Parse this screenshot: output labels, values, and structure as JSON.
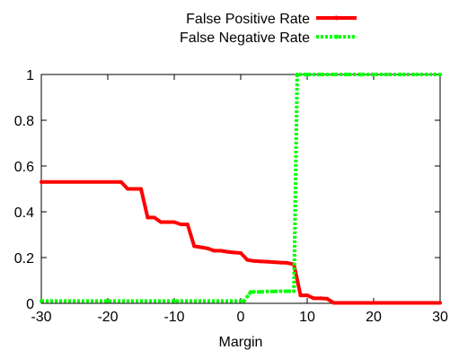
{
  "chart_data": {
    "type": "line",
    "xlabel": "Margin",
    "ylabel": "",
    "xlim": [
      -30,
      30
    ],
    "ylim": [
      0,
      1
    ],
    "xticks": [
      -30,
      -20,
      -10,
      0,
      10,
      20,
      30
    ],
    "yticks": [
      0,
      0.2,
      0.4,
      0.6,
      0.8,
      1
    ],
    "xtick_labels": [
      "-30",
      "-20",
      "-10",
      "0",
      "10",
      "20",
      "30"
    ],
    "ytick_labels": [
      "0",
      "0.2",
      "0.4",
      "0.6",
      "0.8",
      "1"
    ],
    "grid": false,
    "legend_position": "top-center",
    "series": [
      {
        "name": "False Positive Rate",
        "color": "#ff0000",
        "style": "solid",
        "marker": "dot",
        "x": [
          -30,
          -18,
          -17,
          -15,
          -14,
          -13,
          -12,
          -10,
          -9,
          -8,
          -7,
          -6,
          -5,
          -4,
          -3,
          -2,
          -1,
          0,
          1,
          2,
          3,
          4,
          5,
          6,
          7,
          8,
          9,
          10,
          11,
          12,
          13,
          14,
          16,
          18,
          20,
          25,
          30
        ],
        "y": [
          0.53,
          0.53,
          0.5,
          0.5,
          0.375,
          0.375,
          0.355,
          0.355,
          0.345,
          0.345,
          0.25,
          0.245,
          0.24,
          0.23,
          0.23,
          0.225,
          0.222,
          0.22,
          0.19,
          0.185,
          0.183,
          0.182,
          0.18,
          0.178,
          0.177,
          0.17,
          0.035,
          0.035,
          0.022,
          0.022,
          0.02,
          0.002,
          0.002,
          0.002,
          0.002,
          0.002,
          0.002
        ]
      },
      {
        "name": "False Negative Rate",
        "color": "#00ff00",
        "style": "dotted",
        "marker": "dot",
        "x": [
          -30,
          -20,
          -10,
          0,
          0.5,
          1,
          1.5,
          2,
          3,
          4,
          5,
          6,
          7,
          8,
          8.5,
          9,
          10,
          12,
          14,
          16,
          18,
          20,
          22,
          24,
          26,
          28,
          30
        ],
        "y": [
          0.01,
          0.01,
          0.01,
          0.01,
          0.01,
          0.03,
          0.05,
          0.05,
          0.05,
          0.052,
          0.052,
          0.053,
          0.053,
          0.053,
          1,
          1,
          1,
          1,
          1,
          1,
          1,
          1,
          1,
          1,
          1,
          1,
          1
        ]
      }
    ]
  }
}
